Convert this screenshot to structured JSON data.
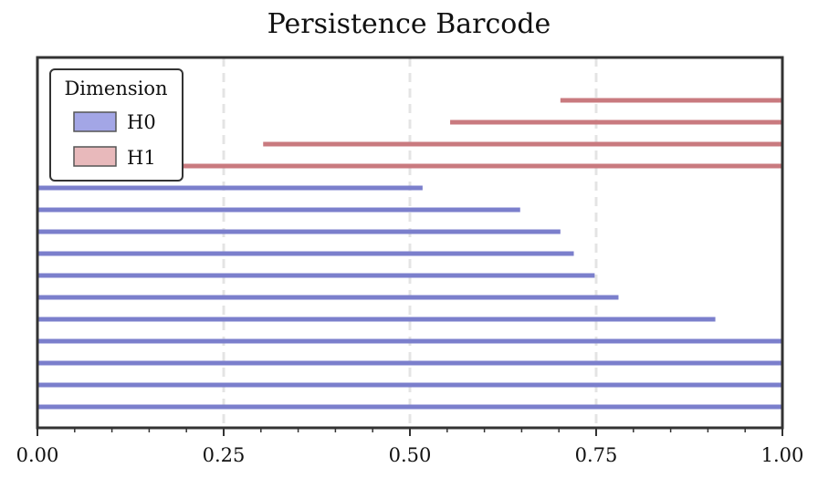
{
  "chart_data": {
    "type": "barcode",
    "title": "Persistence Barcode",
    "xlabel": "",
    "ylabel": "",
    "xlim": [
      0,
      1
    ],
    "xticks": [
      "0.00",
      "0.25",
      "0.50",
      "0.75",
      "1.00"
    ],
    "xtick_values": [
      0,
      0.25,
      0.5,
      0.75,
      1.0
    ],
    "grid": "vertical dashed",
    "legend": {
      "title": "Dimension",
      "placement": "top-left",
      "entries": [
        "H0",
        "H1"
      ]
    },
    "series": [
      {
        "name": "H0",
        "color": "#7b7fcc",
        "swatch_color": "#a3a6e6",
        "bars": [
          {
            "birth": 0.0,
            "death": 1.0
          },
          {
            "birth": 0.0,
            "death": 1.0
          },
          {
            "birth": 0.0,
            "death": 1.0
          },
          {
            "birth": 0.0,
            "death": 1.0
          },
          {
            "birth": 0.0,
            "death": 0.91
          },
          {
            "birth": 0.0,
            "death": 0.78
          },
          {
            "birth": 0.0,
            "death": 0.748
          },
          {
            "birth": 0.0,
            "death": 0.72
          },
          {
            "birth": 0.0,
            "death": 0.702
          },
          {
            "birth": 0.0,
            "death": 0.648
          },
          {
            "birth": 0.0,
            "death": 0.517
          }
        ]
      },
      {
        "name": "H1",
        "color": "#c97a7f",
        "swatch_color": "#e8b9bb",
        "bars": [
          {
            "birth": 0.16,
            "death": 1.0
          },
          {
            "birth": 0.303,
            "death": 1.0
          },
          {
            "birth": 0.554,
            "death": 1.0
          },
          {
            "birth": 0.702,
            "death": 1.0
          }
        ]
      }
    ]
  }
}
